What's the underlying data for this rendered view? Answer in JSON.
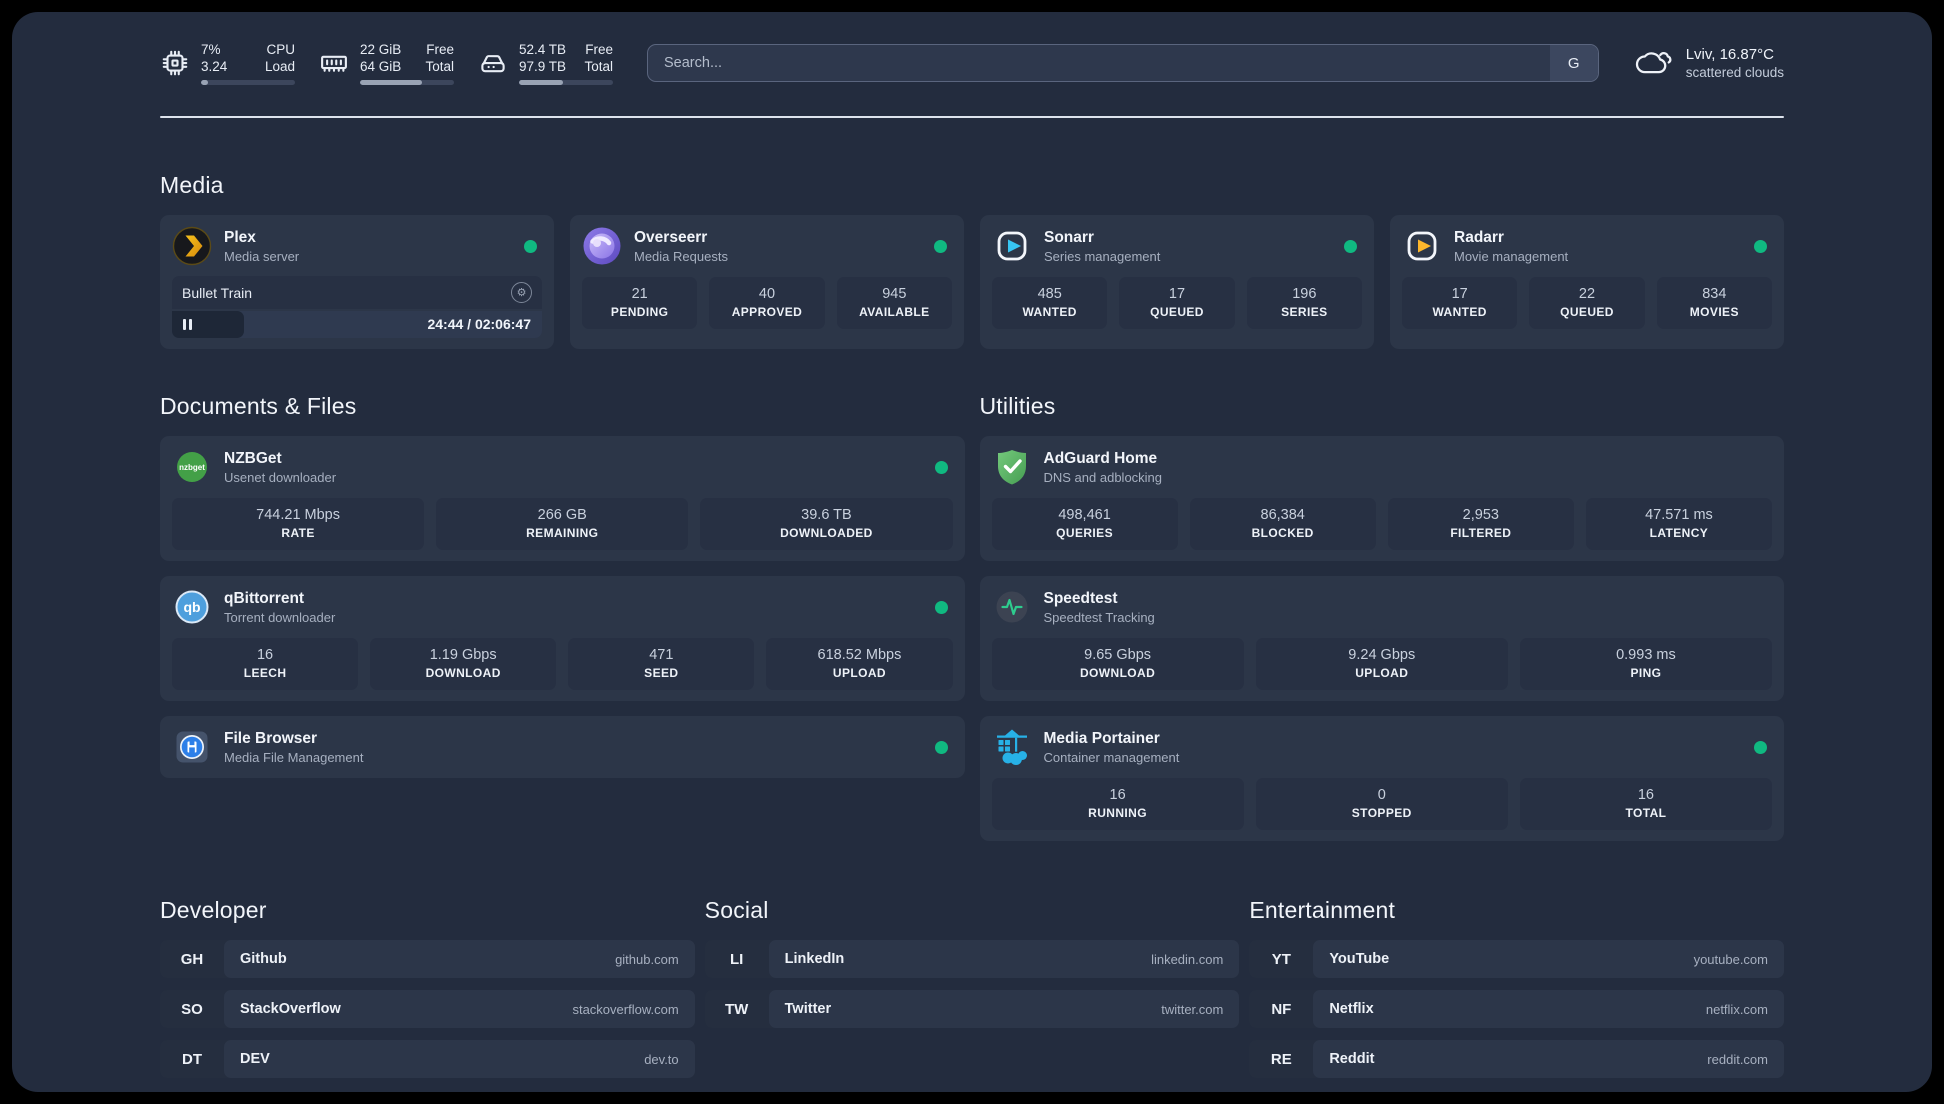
{
  "topbar": {
    "resources": [
      {
        "name": "cpu",
        "values": [
          "7%",
          "3.24"
        ],
        "labels": [
          "CPU",
          "Load"
        ],
        "progress_pct": 7
      },
      {
        "name": "memory",
        "values": [
          "22 GiB",
          "64 GiB"
        ],
        "labels": [
          "Free",
          "Total"
        ],
        "progress_pct": 66
      },
      {
        "name": "disk",
        "values": [
          "52.4 TB",
          "97.9 TB"
        ],
        "labels": [
          "Free",
          "Total"
        ],
        "progress_pct": 47
      }
    ],
    "search": {
      "placeholder": "Search...",
      "button_label": "G"
    },
    "weather": {
      "line1": "Lviv, 16.87°C",
      "line2": "scattered clouds"
    }
  },
  "sections": {
    "media": {
      "title": "Media",
      "plex": {
        "title": "Plex",
        "subtitle": "Media server",
        "status": "online",
        "player": {
          "track": "Bullet Train",
          "time": "24:44 / 02:06:47",
          "progress_pct": 19.5
        }
      },
      "overseerr": {
        "title": "Overseerr",
        "subtitle": "Media Requests",
        "status": "online",
        "stats": [
          {
            "value": "21",
            "label": "PENDING"
          },
          {
            "value": "40",
            "label": "APPROVED"
          },
          {
            "value": "945",
            "label": "AVAILABLE"
          }
        ]
      },
      "sonarr": {
        "title": "Sonarr",
        "subtitle": "Series management",
        "status": "online",
        "stats": [
          {
            "value": "485",
            "label": "WANTED"
          },
          {
            "value": "17",
            "label": "QUEUED"
          },
          {
            "value": "196",
            "label": "SERIES"
          }
        ]
      },
      "radarr": {
        "title": "Radarr",
        "subtitle": "Movie management",
        "status": "online",
        "stats": [
          {
            "value": "17",
            "label": "WANTED"
          },
          {
            "value": "22",
            "label": "QUEUED"
          },
          {
            "value": "834",
            "label": "MOVIES"
          }
        ]
      }
    },
    "documents": {
      "title": "Documents & Files",
      "nzbget": {
        "title": "NZBGet",
        "subtitle": "Usenet downloader",
        "status": "online",
        "stats": [
          {
            "value": "744.21 Mbps",
            "label": "RATE"
          },
          {
            "value": "266 GB",
            "label": "REMAINING"
          },
          {
            "value": "39.6 TB",
            "label": "DOWNLOADED"
          }
        ]
      },
      "qbittorrent": {
        "title": "qBittorrent",
        "subtitle": "Torrent downloader",
        "status": "online",
        "stats": [
          {
            "value": "16",
            "label": "LEECH"
          },
          {
            "value": "1.19 Gbps",
            "label": "DOWNLOAD"
          },
          {
            "value": "471",
            "label": "SEED"
          },
          {
            "value": "618.52 Mbps",
            "label": "UPLOAD"
          }
        ]
      },
      "filebrowser": {
        "title": "File Browser",
        "subtitle": "Media File Management",
        "status": "online"
      }
    },
    "utilities": {
      "title": "Utilities",
      "adguard": {
        "title": "AdGuard Home",
        "subtitle": "DNS and adblocking",
        "stats": [
          {
            "value": "498,461",
            "label": "QUERIES"
          },
          {
            "value": "86,384",
            "label": "BLOCKED"
          },
          {
            "value": "2,953",
            "label": "FILTERED"
          },
          {
            "value": "47.571 ms",
            "label": "LATENCY"
          }
        ]
      },
      "speedtest": {
        "title": "Speedtest",
        "subtitle": "Speedtest Tracking",
        "stats": [
          {
            "value": "9.65 Gbps",
            "label": "DOWNLOAD"
          },
          {
            "value": "9.24 Gbps",
            "label": "UPLOAD"
          },
          {
            "value": "0.993 ms",
            "label": "PING"
          }
        ]
      },
      "portainer": {
        "title": "Media Portainer",
        "subtitle": "Container management",
        "status": "online",
        "stats": [
          {
            "value": "16",
            "label": "RUNNING"
          },
          {
            "value": "0",
            "label": "STOPPED"
          },
          {
            "value": "16",
            "label": "TOTAL"
          }
        ]
      }
    },
    "bookmarks": [
      {
        "title": "Developer",
        "items": [
          {
            "abbr": "GH",
            "name": "Github",
            "url": "github.com"
          },
          {
            "abbr": "SO",
            "name": "StackOverflow",
            "url": "stackoverflow.com"
          },
          {
            "abbr": "DT",
            "name": "DEV",
            "url": "dev.to"
          }
        ]
      },
      {
        "title": "Social",
        "items": [
          {
            "abbr": "LI",
            "name": "LinkedIn",
            "url": "linkedin.com"
          },
          {
            "abbr": "TW",
            "name": "Twitter",
            "url": "twitter.com"
          }
        ]
      },
      {
        "title": "Entertainment",
        "items": [
          {
            "abbr": "YT",
            "name": "YouTube",
            "url": "youtube.com"
          },
          {
            "abbr": "NF",
            "name": "Netflix",
            "url": "netflix.com"
          },
          {
            "abbr": "RE",
            "name": "Reddit",
            "url": "reddit.com"
          }
        ]
      }
    ]
  },
  "colors": {
    "status_online": "#10b981",
    "background": "#232c3e",
    "card": "#2c3648",
    "accent_plex": "#e5a00d",
    "accent_sonarr": "#35c5f4",
    "accent_radarr": "#ffb531",
    "accent_portainer": "#27b1e7"
  }
}
